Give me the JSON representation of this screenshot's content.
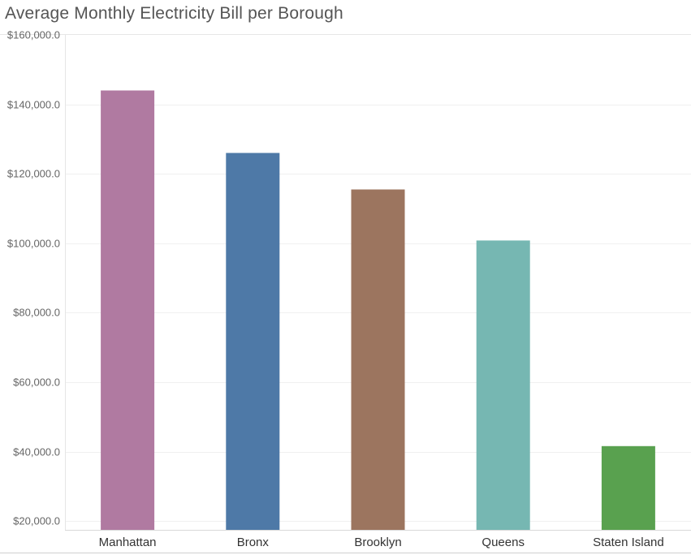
{
  "chart_data": {
    "type": "bar",
    "title": "Average Monthly Electricity Bill per Borough",
    "xlabel": "",
    "ylabel": "",
    "categories": [
      "Manhattan",
      "Bronx",
      "Brooklyn",
      "Queens",
      "Staten Island"
    ],
    "values": [
      144000,
      126000,
      115500,
      100800,
      41600
    ],
    "colors": [
      "#b07aa1",
      "#4e79a7",
      "#9c755f",
      "#76b7b2",
      "#59a14f"
    ],
    "ylim": [
      17500,
      160000
    ],
    "yticks": [
      20000,
      40000,
      60000,
      80000,
      100000,
      120000,
      140000,
      160000
    ],
    "ytick_labels": [
      "$20,000.0",
      "$40,000.0",
      "$60,000.0",
      "$80,000.0",
      "$100,000.0",
      "$120,000.0",
      "$140,000.0",
      "$160,000.0"
    ],
    "grid": true,
    "legend": "none"
  }
}
